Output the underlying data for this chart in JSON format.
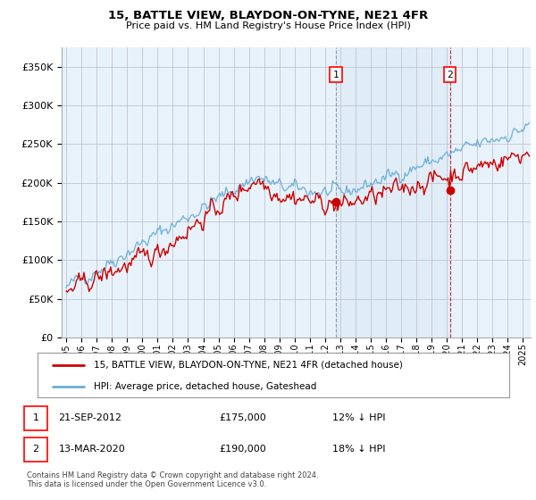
{
  "title": "15, BATTLE VIEW, BLAYDON-ON-TYNE, NE21 4FR",
  "subtitle": "Price paid vs. HM Land Registry's House Price Index (HPI)",
  "ytick_values": [
    0,
    50000,
    100000,
    150000,
    200000,
    250000,
    300000,
    350000
  ],
  "ylabel_ticks": [
    "£0",
    "£50K",
    "£100K",
    "£150K",
    "£200K",
    "£250K",
    "£300K",
    "£350K"
  ],
  "ylim": [
    0,
    375000
  ],
  "xlim": [
    1994.7,
    2025.5
  ],
  "x_ticks": [
    1995,
    1996,
    1997,
    1998,
    1999,
    2000,
    2001,
    2002,
    2003,
    2004,
    2005,
    2006,
    2007,
    2008,
    2009,
    2010,
    2011,
    2012,
    2013,
    2014,
    2015,
    2016,
    2017,
    2018,
    2019,
    2020,
    2021,
    2022,
    2023,
    2024,
    2025
  ],
  "hpi_color": "#6aaed6",
  "hpi_fill_color": "#cce0f0",
  "price_color": "#cc0000",
  "vline1_color": "#888888",
  "vline2_color": "#cc0000",
  "bg_color": "#e8f2fa",
  "shade_color": "#cce0f0",
  "marker1_x": 2012.72,
  "marker1_y": 175000,
  "marker2_x": 2020.2,
  "marker2_y": 190000,
  "legend_line1": "15, BATTLE VIEW, BLAYDON-ON-TYNE, NE21 4FR (detached house)",
  "legend_line2": "HPI: Average price, detached house, Gateshead",
  "footer": "Contains HM Land Registry data © Crown copyright and database right 2024.\nThis data is licensed under the Open Government Licence v3.0."
}
